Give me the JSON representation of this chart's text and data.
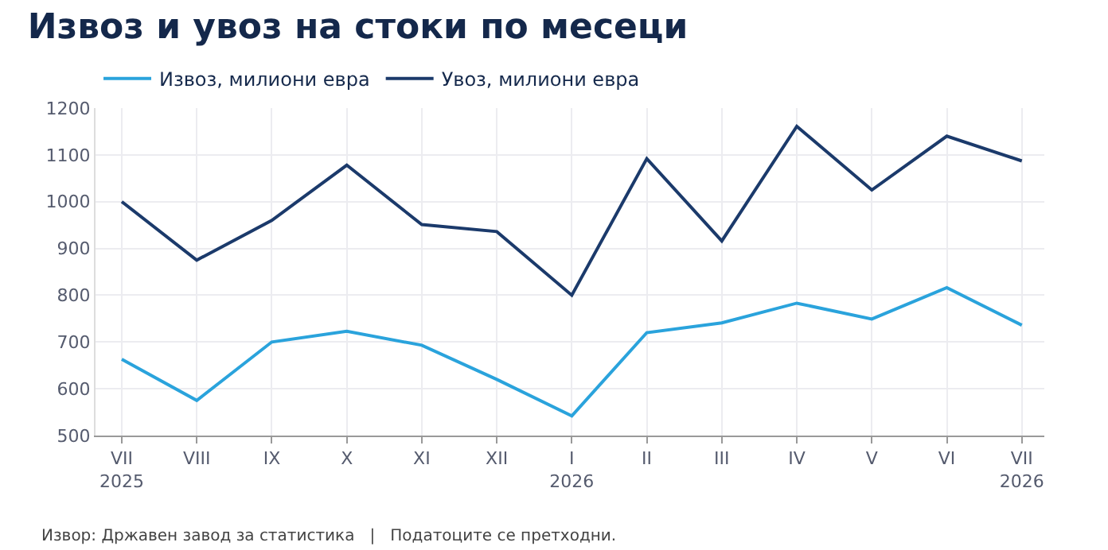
{
  "chart_data": {
    "type": "line",
    "title": "Извоз и увоз на стоки по месеци",
    "categories": [
      "VII\n2025",
      "VIII",
      "IX",
      "X",
      "XI",
      "XII",
      "I\n2026",
      "II",
      "III",
      "IV",
      "V",
      "VI",
      "VII\n2026"
    ],
    "series": [
      {
        "name": "Извоз, милиони евра",
        "color": "#2aa3dc",
        "values": [
          663,
          575,
          700,
          723,
          693,
          620,
          542,
          720,
          741,
          783,
          749,
          816,
          736
        ]
      },
      {
        "name": "Увоз, милиони евра",
        "color": "#1b3a6b",
        "values": [
          1000,
          875,
          960,
          1078,
          951,
          936,
          800,
          1092,
          916,
          1161,
          1025,
          1140,
          1087
        ]
      }
    ],
    "ylim": [
      500,
      1200
    ],
    "yticks": [
      500,
      600,
      700,
      800,
      900,
      1000,
      1100,
      1200
    ],
    "grid": true,
    "legend": "top left",
    "marker": "none",
    "line_style": "solid",
    "annotations": [
      "Извор: Државен завод за статистика   |   Податоците се претходни."
    ]
  }
}
